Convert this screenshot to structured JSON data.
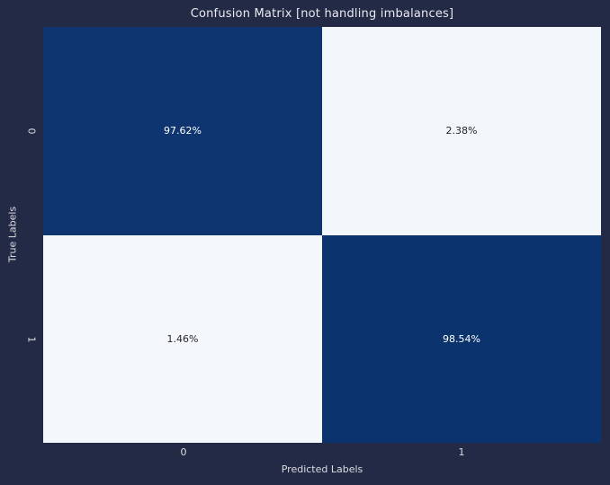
{
  "colors": {
    "background": "#222a45",
    "cmap_low": "#f7fbff",
    "cmap_high": "#08306b",
    "annotation_on_dark": "#ffffff",
    "annotation_on_light": "#262626",
    "title_text": "#eaeaf0",
    "tick_text": "#dcdce2",
    "axis_label_text": "#dcdce2"
  },
  "chart_data": {
    "type": "heatmap",
    "title": "Confusion Matrix [not handling imbalances]",
    "xlabel": "Predicted Labels",
    "ylabel": "True Labels",
    "x_categories": [
      "0",
      "1"
    ],
    "y_categories": [
      "0",
      "1"
    ],
    "values": [
      [
        97.62,
        2.38
      ],
      [
        1.46,
        98.54
      ]
    ],
    "cell_labels": [
      [
        "97.62%",
        "2.38%"
      ],
      [
        "1.46%",
        "98.54%"
      ]
    ],
    "value_format": "percent",
    "colormap": "Blues",
    "annotations": true,
    "legend": "none",
    "grid": false
  }
}
